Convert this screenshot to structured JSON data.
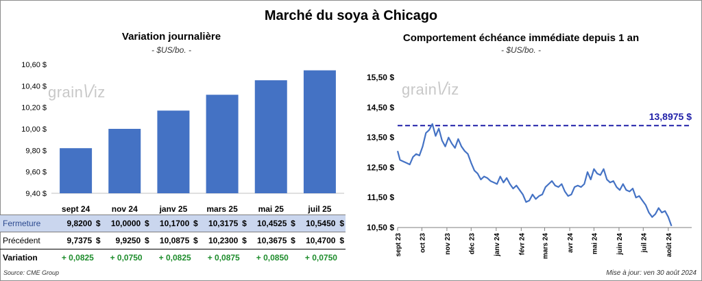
{
  "title": "Marché du soya à Chicago",
  "left": {
    "subtitle": "Variation journalière",
    "unit": "- $US/bo. -"
  },
  "right": {
    "subtitle": "Comportement échéance immédiate depuis 1 an",
    "unit": "- $US/bo. -",
    "reference_label": "13,8975 $"
  },
  "watermark": {
    "text": "grain",
    "suffix": "iz"
  },
  "table": {
    "row_labels": {
      "close": "Fermeture",
      "prev": "Précédent",
      "var": "Variation"
    },
    "currency": "$",
    "close": [
      "9,8200",
      "10,0000",
      "10,1700",
      "10,3175",
      "10,4525",
      "10,5450"
    ],
    "prev": [
      "9,7375",
      "9,9250",
      "10,0875",
      "10,2300",
      "10,3675",
      "10,4700"
    ],
    "var": [
      "+ 0,0825",
      "+ 0,0750",
      "+ 0,0825",
      "+ 0,0875",
      "+ 0,0850",
      "+ 0,0750"
    ]
  },
  "footer": {
    "source": "Source: CME Group",
    "updated": "Mise à jour: ven 30 août 2024"
  },
  "colors": {
    "bar": "#4472c4",
    "line": "#4472c4",
    "reference": "#1f1fa8",
    "variation": "#1d8c2b",
    "close_row": "#cad6ee"
  },
  "chart_data": [
    {
      "type": "bar",
      "title": "Variation journalière",
      "categories": [
        "sept 24",
        "nov 24",
        "janv 25",
        "mars 25",
        "mai 25",
        "juil 25"
      ],
      "values": [
        9.82,
        10.0,
        10.17,
        10.3175,
        10.4525,
        10.545
      ],
      "ylim": [
        9.4,
        10.6
      ],
      "yticks": [
        "9,40 $",
        "9,60 $",
        "9,80 $",
        "10,00 $",
        "10,20 $",
        "10,40 $",
        "10,60 $"
      ],
      "ytick_values": [
        9.4,
        9.6,
        9.8,
        10.0,
        10.2,
        10.4,
        10.6
      ],
      "grid": false,
      "legend": "none"
    },
    {
      "type": "line",
      "title": "Comportement échéance immédiate depuis 1 an",
      "ylim": [
        10.5,
        15.5
      ],
      "yticks": [
        "10,50 $",
        "11,50 $",
        "12,50 $",
        "13,50 $",
        "14,50 $",
        "15,50 $"
      ],
      "ytick_values": [
        10.5,
        11.5,
        12.5,
        13.5,
        14.5,
        15.5
      ],
      "xtick_labels": [
        "sept 23",
        "oct 23",
        "nov 23",
        "déc 23",
        "janv 24",
        "févr 24",
        "mars 24",
        "avr 24",
        "mai 24",
        "juin 24",
        "juil 24",
        "août 24"
      ],
      "xtick_dates": [
        "2023-09-01",
        "2023-10-01",
        "2023-11-01",
        "2023-12-01",
        "2024-01-01",
        "2024-02-01",
        "2024-03-01",
        "2024-04-01",
        "2024-05-01",
        "2024-06-01",
        "2024-07-01",
        "2024-08-01"
      ],
      "x_range": [
        "2023-09-01",
        "2024-08-30"
      ],
      "reference_line": 13.8975,
      "grid": false,
      "legend": "none",
      "series": [
        {
          "x": [
            "2023-09-01",
            "2023-09-04",
            "2023-09-08",
            "2023-09-12",
            "2023-09-16",
            "2023-09-20",
            "2023-09-24",
            "2023-09-28",
            "2023-10-02",
            "2023-10-06",
            "2023-10-10",
            "2023-10-14",
            "2023-10-18",
            "2023-10-22",
            "2023-10-26",
            "2023-10-30",
            "2023-11-03",
            "2023-11-07",
            "2023-11-11",
            "2023-11-15",
            "2023-11-19",
            "2023-11-23",
            "2023-11-27",
            "2023-12-01",
            "2023-12-05",
            "2023-12-09",
            "2023-12-13",
            "2023-12-17",
            "2023-12-21",
            "2023-12-25",
            "2023-12-29",
            "2024-01-02",
            "2024-01-06",
            "2024-01-10",
            "2024-01-14",
            "2024-01-18",
            "2024-01-22",
            "2024-01-26",
            "2024-01-30",
            "2024-02-03",
            "2024-02-07",
            "2024-02-11",
            "2024-02-15",
            "2024-02-19",
            "2024-02-23",
            "2024-02-27",
            "2024-03-02",
            "2024-03-06",
            "2024-03-10",
            "2024-03-14",
            "2024-03-18",
            "2024-03-22",
            "2024-03-26",
            "2024-03-30",
            "2024-04-03",
            "2024-04-07",
            "2024-04-11",
            "2024-04-15",
            "2024-04-19",
            "2024-04-23",
            "2024-04-27",
            "2024-05-01",
            "2024-05-05",
            "2024-05-09",
            "2024-05-13",
            "2024-05-17",
            "2024-05-21",
            "2024-05-25",
            "2024-05-29",
            "2024-06-02",
            "2024-06-06",
            "2024-06-10",
            "2024-06-14",
            "2024-06-18",
            "2024-06-22",
            "2024-06-26",
            "2024-06-30",
            "2024-07-04",
            "2024-07-08",
            "2024-07-12",
            "2024-07-16",
            "2024-07-20",
            "2024-07-24",
            "2024-07-28",
            "2024-08-01",
            "2024-08-05"
          ],
          "values": [
            13.05,
            12.75,
            12.7,
            12.65,
            12.6,
            12.85,
            12.95,
            12.9,
            13.2,
            13.65,
            13.75,
            13.95,
            13.55,
            13.8,
            13.4,
            13.2,
            13.5,
            13.3,
            13.15,
            13.45,
            13.2,
            13.05,
            12.95,
            12.65,
            12.4,
            12.3,
            12.1,
            12.2,
            12.15,
            12.05,
            12.0,
            11.95,
            12.2,
            12.0,
            12.15,
            11.95,
            11.8,
            11.9,
            11.75,
            11.6,
            11.35,
            11.4,
            11.6,
            11.45,
            11.55,
            11.6,
            11.85,
            11.95,
            12.05,
            11.9,
            11.85,
            11.95,
            11.7,
            11.55,
            11.6,
            11.85,
            11.9,
            11.85,
            11.95,
            12.35,
            12.1,
            12.45,
            12.3,
            12.25,
            12.45,
            12.1,
            12.0,
            12.05,
            11.85,
            11.75,
            11.95,
            11.75,
            11.7,
            11.8,
            11.5,
            11.55,
            11.4,
            11.25,
            11.0,
            10.85,
            10.95,
            11.15,
            11.0,
            11.05,
            10.85,
            10.55
          ]
        }
      ]
    }
  ]
}
